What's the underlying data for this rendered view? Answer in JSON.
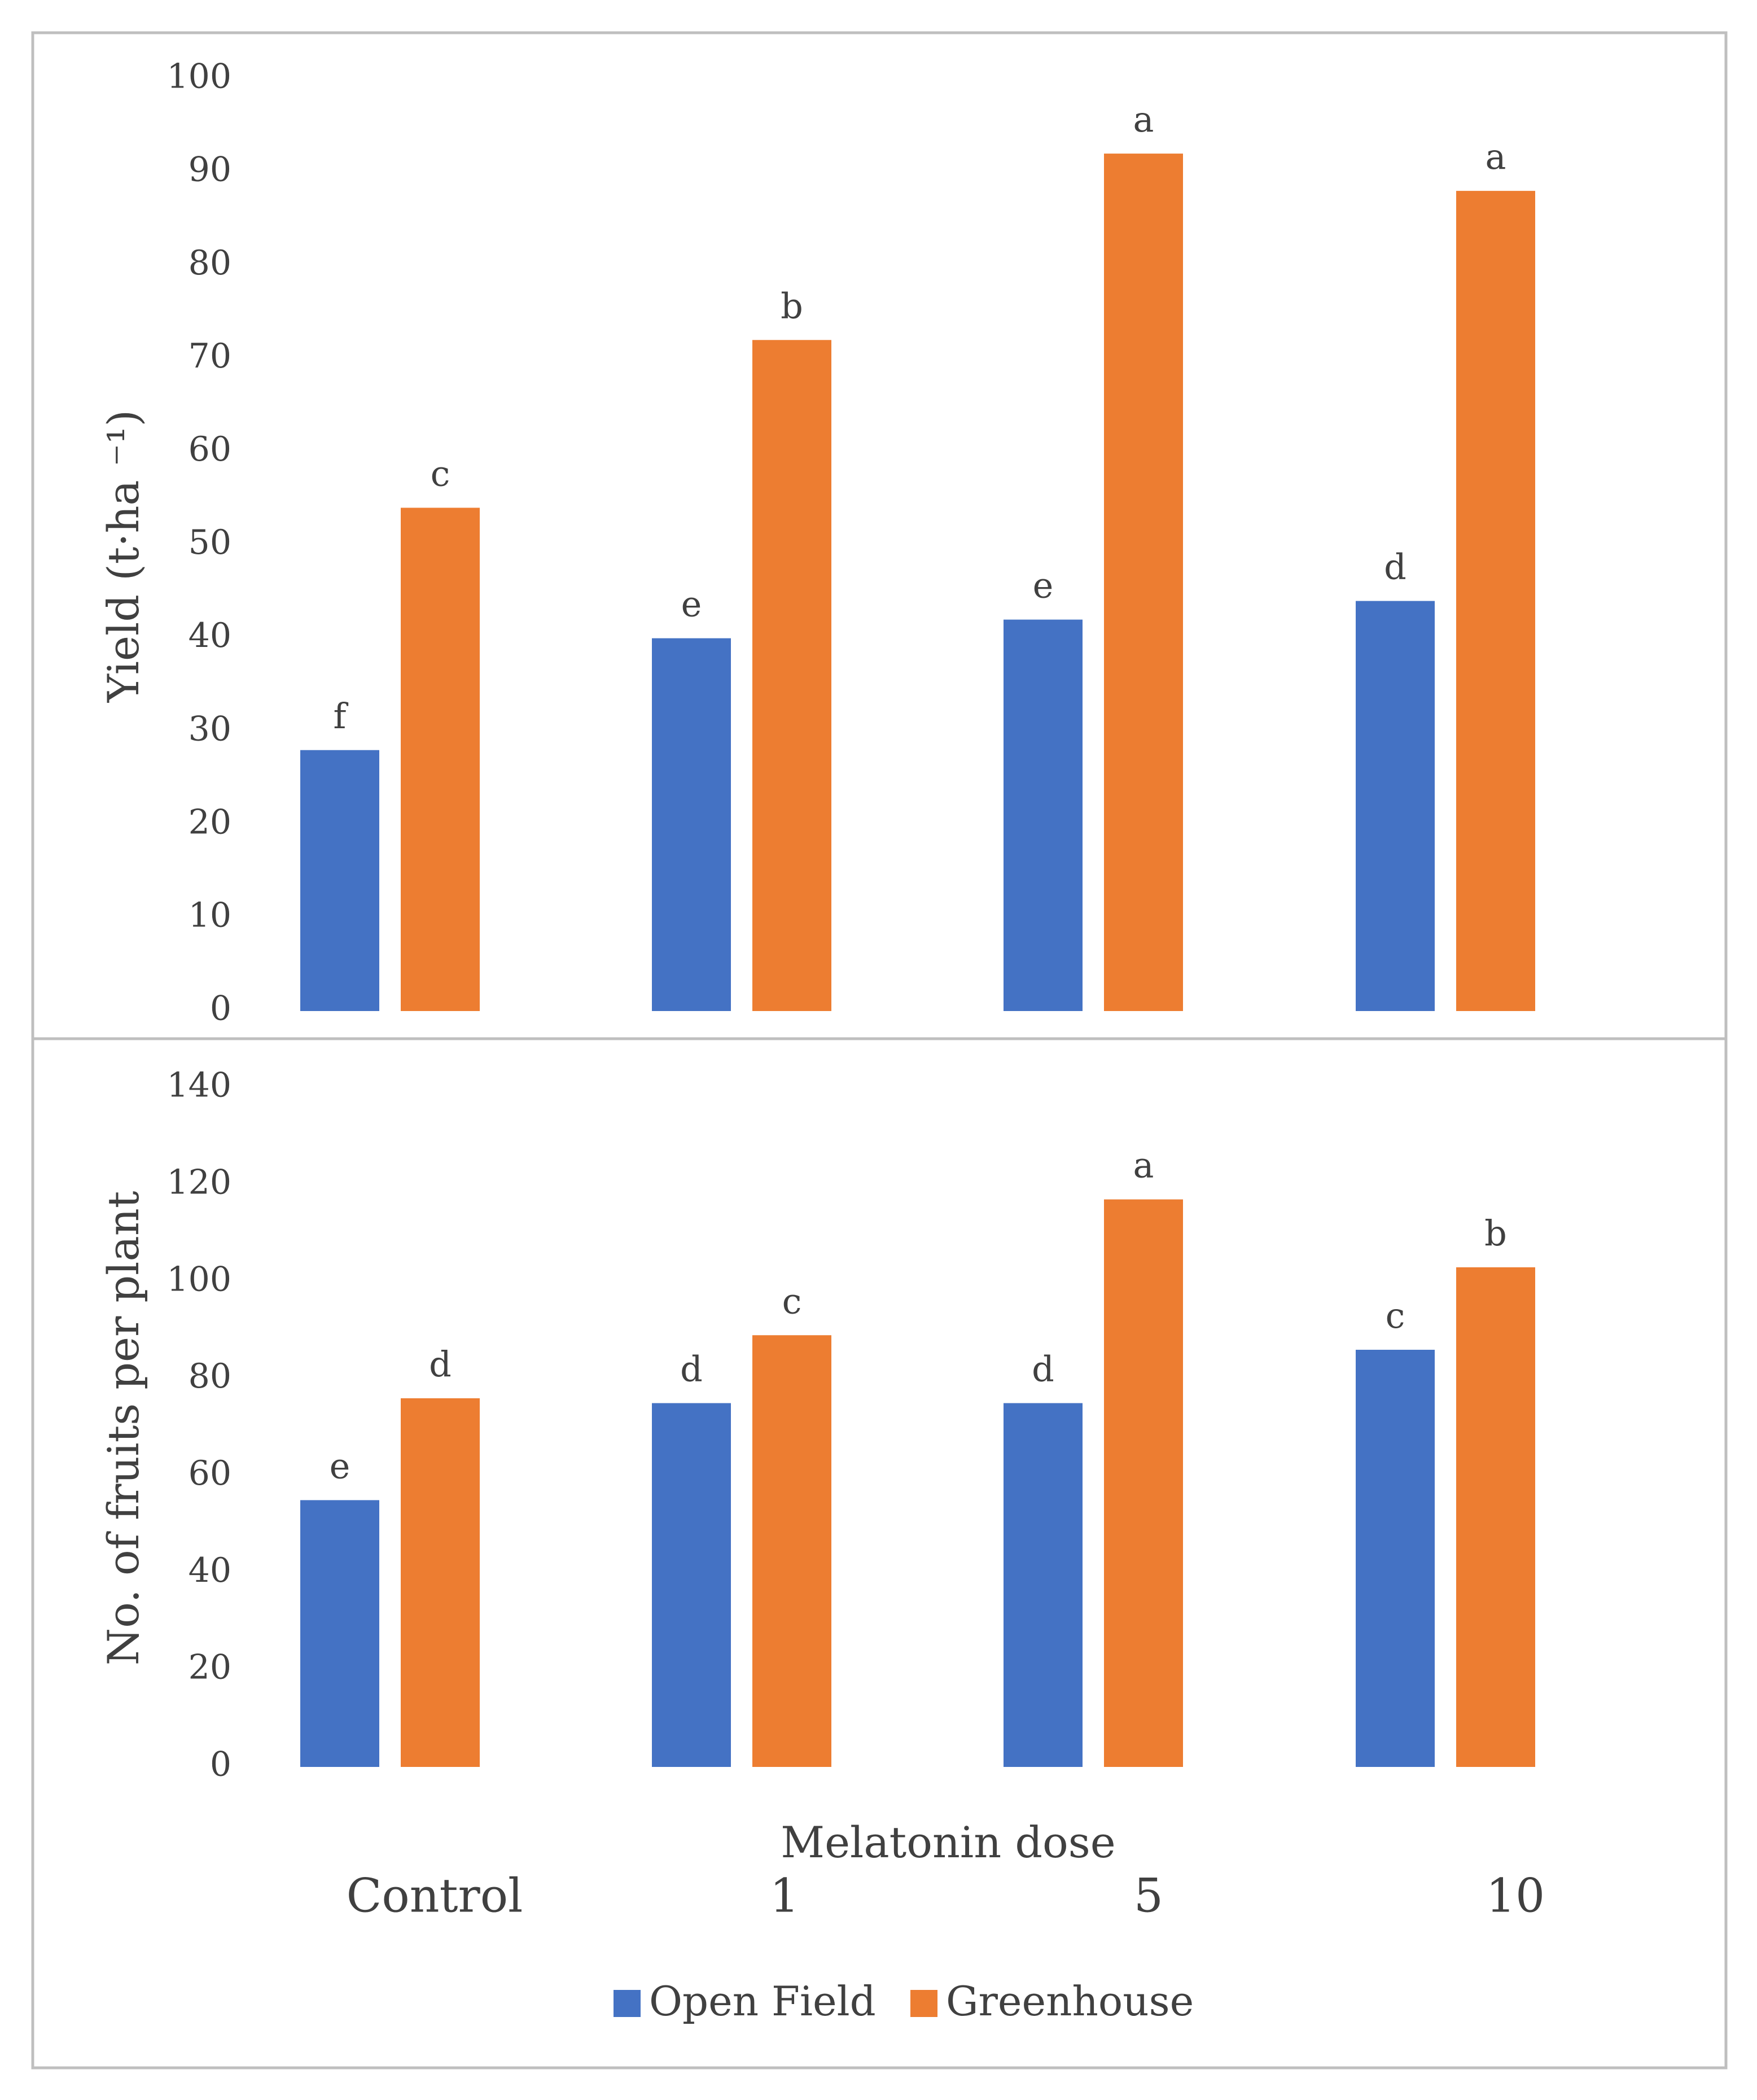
{
  "chart_data": [
    {
      "type": "bar",
      "ylabel": "Yield (t·ha ⁻¹)",
      "ylim": [
        0,
        100
      ],
      "yticks": [
        0,
        10,
        20,
        30,
        40,
        50,
        60,
        70,
        80,
        90,
        100
      ],
      "categories": [
        "Control",
        "1",
        "5",
        "10"
      ],
      "series": [
        {
          "name": "Open Field",
          "color": "#4472C4",
          "values": [
            28,
            40,
            42,
            44
          ],
          "labels": [
            "f",
            "e",
            "e",
            "d"
          ]
        },
        {
          "name": "Greenhouse",
          "color": "#ED7D31",
          "values": [
            54,
            72,
            92,
            88
          ],
          "labels": [
            "c",
            "b",
            "a",
            "a"
          ]
        }
      ]
    },
    {
      "type": "bar",
      "ylabel": "No. of fruits per plant",
      "ylim": [
        0,
        140
      ],
      "yticks": [
        0,
        20,
        40,
        60,
        80,
        100,
        120,
        140
      ],
      "categories": [
        "Control",
        "1",
        "5",
        "10"
      ],
      "series": [
        {
          "name": "Open Field",
          "color": "#4472C4",
          "values": [
            55,
            75,
            75,
            86
          ],
          "labels": [
            "e",
            "d",
            "d",
            "c"
          ]
        },
        {
          "name": "Greenhouse",
          "color": "#ED7D31",
          "values": [
            76,
            89,
            117,
            103
          ],
          "labels": [
            "d",
            "c",
            "a",
            "b"
          ]
        }
      ]
    }
  ],
  "xlabel": "Melatonin dose",
  "categories": [
    "Control",
    "1",
    "5",
    "10"
  ],
  "legend": [
    {
      "name": "Open Field",
      "color": "#4472C4"
    },
    {
      "name": "Greenhouse",
      "color": "#ED7D31"
    }
  ]
}
